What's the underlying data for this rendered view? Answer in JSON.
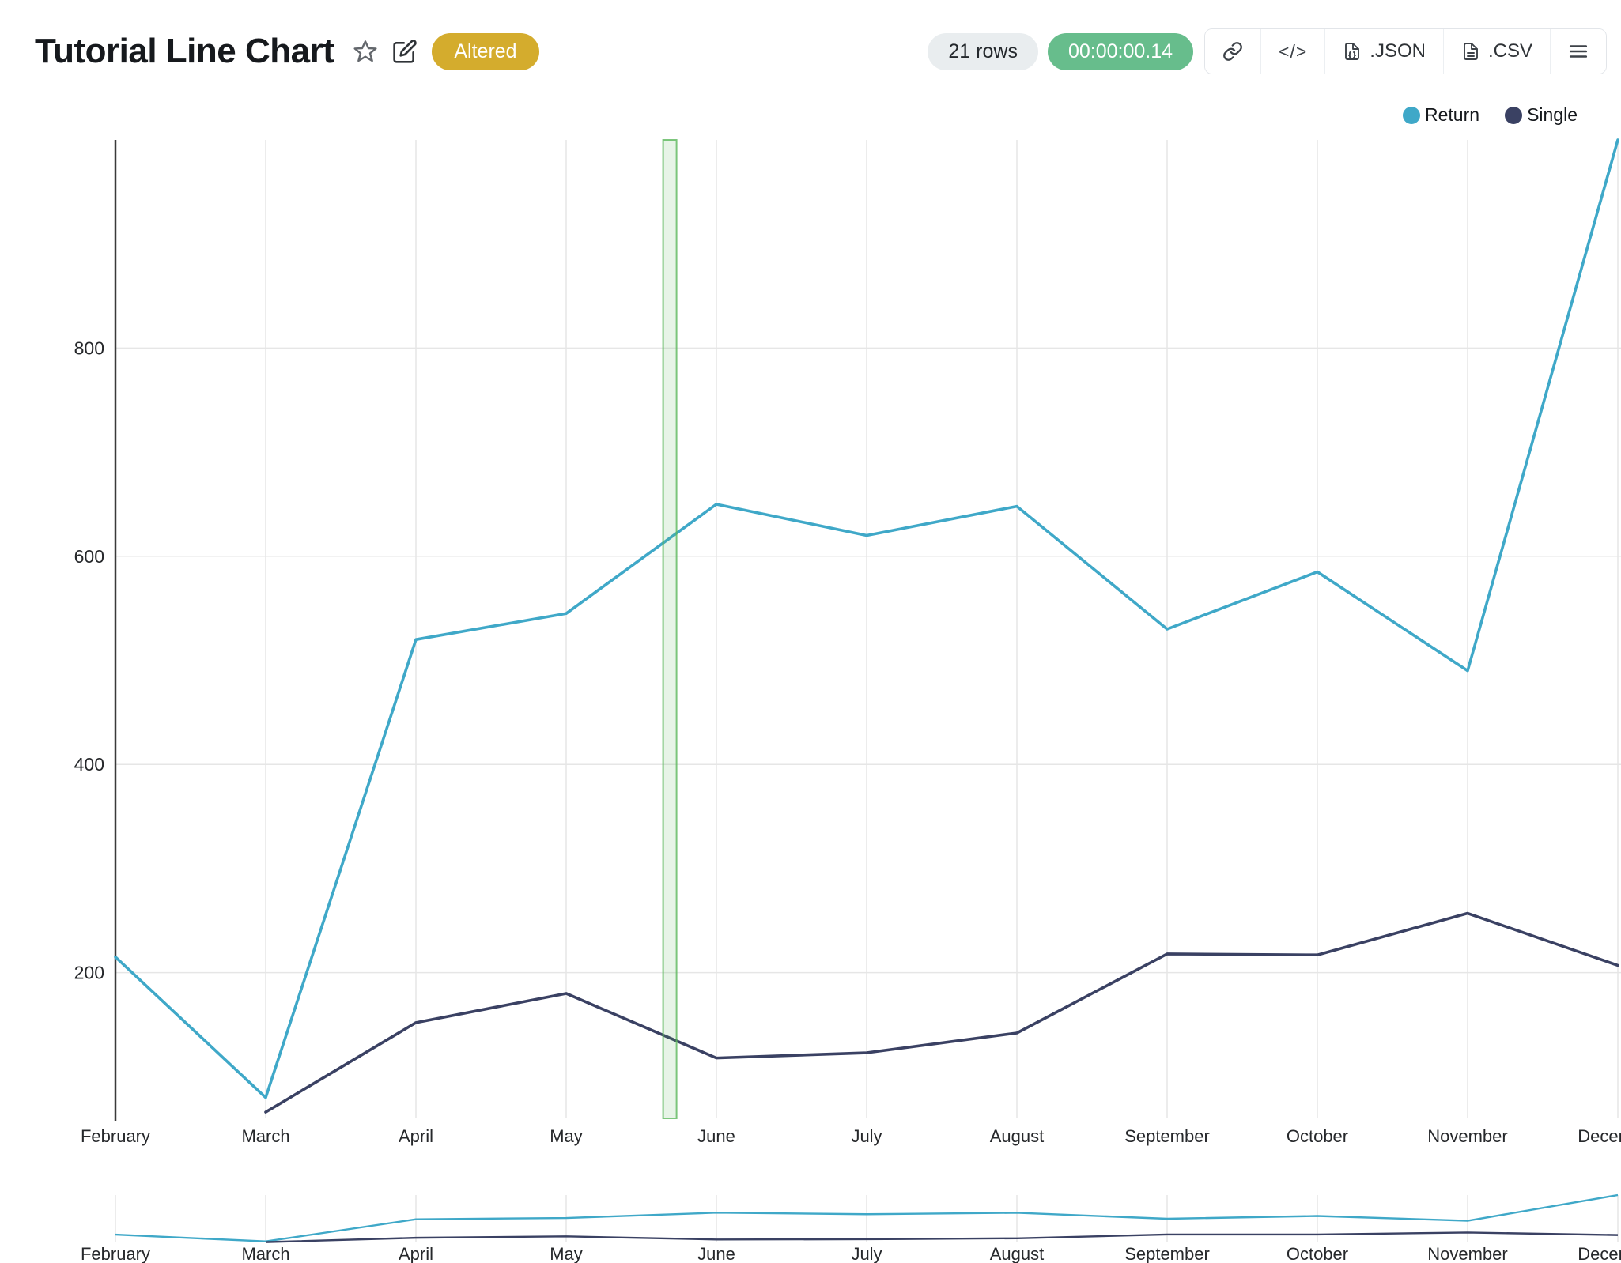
{
  "header": {
    "title": "Tutorial Line Chart",
    "altered_badge": "Altered",
    "row_count": "21 rows",
    "elapsed_time": "00:00:00.14",
    "toolbar": {
      "code_label": "</>",
      "json_label": ".JSON",
      "csv_label": ".CSV"
    },
    "icons": {
      "star": "star-icon",
      "edit": "edit-icon",
      "link": "link-icon",
      "code": "code-icon",
      "file_json": "file-icon",
      "file_csv": "file-icon",
      "menu": "menu-icon"
    }
  },
  "colors": {
    "return_series": "#3fa8c8",
    "single_series": "#3a4163",
    "altered_badge": "#d4ac2d",
    "timer_badge": "#67bd8c",
    "rows_badge": "#e9edef",
    "annotation_band": "#5cb85c",
    "grid": "#e6e6e6",
    "axis": "#3a3a3a"
  },
  "legend": [
    {
      "label": "Return",
      "color": "#3fa8c8"
    },
    {
      "label": "Single",
      "color": "#3a4163"
    }
  ],
  "chart_data": {
    "type": "line",
    "title": "Tutorial Line Chart",
    "categories": [
      "February",
      "March",
      "April",
      "May",
      "June",
      "July",
      "August",
      "September",
      "October",
      "November",
      "December"
    ],
    "series": [
      {
        "name": "Return",
        "color": "#3fa8c8",
        "values": [
          215,
          80,
          520,
          545,
          650,
          620,
          648,
          530,
          585,
          490,
          1000
        ]
      },
      {
        "name": "Single",
        "color": "#3a4163",
        "values": [
          null,
          66,
          152,
          180,
          118,
          123,
          142,
          218,
          217,
          257,
          207
        ]
      }
    ],
    "yticks": [
      200,
      400,
      600,
      800
    ],
    "ylim": [
      60,
      1000
    ],
    "grid": true,
    "legend_position": "top-right",
    "annotation_band": {
      "between": [
        "May",
        "June"
      ],
      "fraction": 0.69,
      "color": "#5cb85c"
    },
    "mini_chart": true
  }
}
